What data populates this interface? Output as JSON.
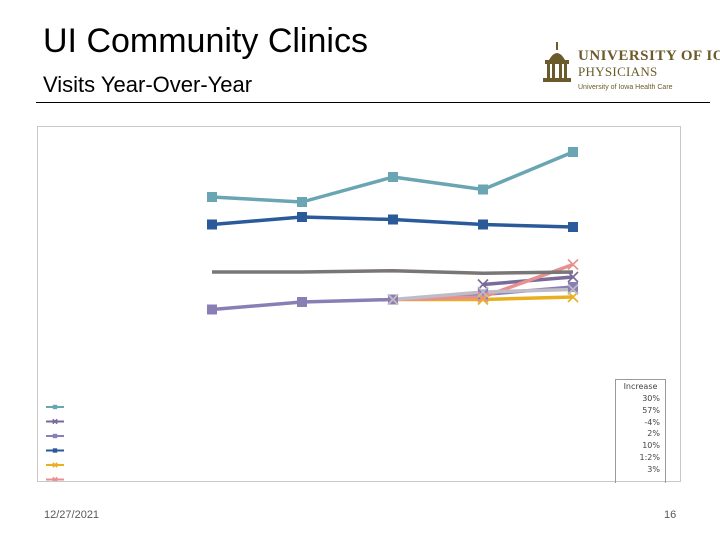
{
  "slide": {
    "title": "UI Community Clinics",
    "subtitle": "Visits Year-Over-Year",
    "date": "12/27/2021",
    "page_number": "16"
  },
  "logo": {
    "line1": "UNIVERSITY OF IOWA",
    "line2": "PHYSICIANS",
    "line3": "University of Iowa Health Care",
    "color": "#6b5a2a"
  },
  "chart_data": {
    "type": "line",
    "title": "",
    "xlabel": "",
    "ylabel": "",
    "categories": [
      "",
      "",
      "",
      "",
      ""
    ],
    "ylim": [
      0,
      100
    ],
    "grid": false,
    "legend_position": "bottom-left",
    "series": [
      {
        "name": "",
        "color": "#6aa5b3",
        "marker": "square",
        "values": [
          76,
          74,
          84,
          79,
          94
        ]
      },
      {
        "name": "",
        "color": "#7a6a9a",
        "marker": "x",
        "values": [
          null,
          null,
          null,
          41,
          44
        ]
      },
      {
        "name": "",
        "color": "#8a7fb5",
        "marker": "square",
        "values": [
          31,
          34,
          35,
          37,
          40
        ]
      },
      {
        "name": "",
        "color": "#2a5a9a",
        "marker": "square",
        "values": [
          65,
          68,
          67,
          65,
          64
        ]
      },
      {
        "name": "",
        "color": "#e8b020",
        "marker": "x",
        "values": [
          null,
          null,
          35,
          35,
          36
        ]
      },
      {
        "name": "",
        "color": "#e89090",
        "marker": "x",
        "values": [
          null,
          null,
          35,
          36,
          49
        ]
      },
      {
        "name": "",
        "color": "#7a7676",
        "marker": "none",
        "values": [
          46,
          46,
          46.5,
          45.5,
          46
        ]
      },
      {
        "name": "",
        "color": "#bfbcc8",
        "marker": "x",
        "values": [
          null,
          null,
          35,
          38,
          39
        ]
      }
    ],
    "increase_table": {
      "header": "Increase",
      "values": [
        "30%",
        "57%",
        "-4%",
        "2%",
        "10%",
        "1:2%",
        "3%"
      ]
    }
  }
}
